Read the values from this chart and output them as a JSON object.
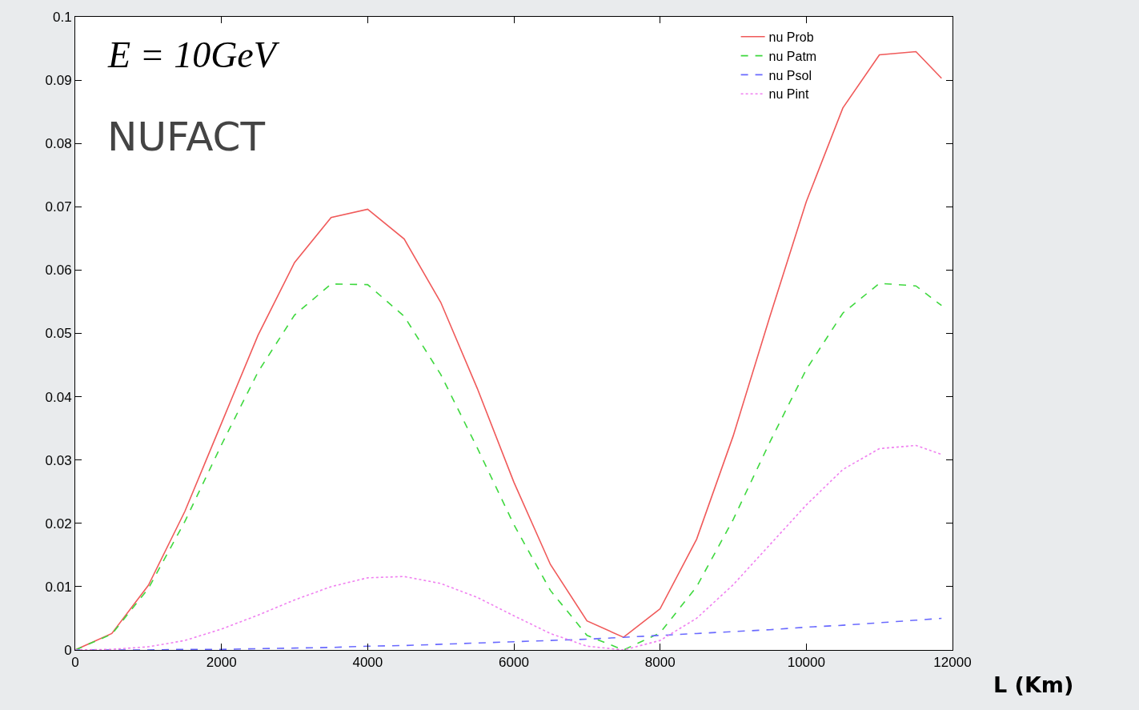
{
  "chart_data": {
    "type": "line",
    "xlabel": "L (Km)",
    "x": [
      0,
      500,
      1000,
      1500,
      2000,
      2500,
      3000,
      3500,
      4000,
      4500,
      5000,
      5500,
      6000,
      6500,
      7000,
      7500,
      8000,
      8500,
      9000,
      9500,
      10000,
      10500,
      11000,
      11500,
      11850
    ],
    "series": [
      {
        "name": "nu Prob",
        "color": "#f05a5a",
        "line_style": "solid",
        "values": [
          0,
          0.0026,
          0.0102,
          0.0219,
          0.0358,
          0.0497,
          0.0612,
          0.0683,
          0.0696,
          0.0649,
          0.0549,
          0.0413,
          0.0265,
          0.0135,
          0.0046,
          0.002,
          0.0065,
          0.0175,
          0.0338,
          0.0526,
          0.0708,
          0.0856,
          0.094,
          0.0945,
          0.0903
        ]
      },
      {
        "name": "nu Patm",
        "color": "#3ed83e",
        "line_style": "dashed",
        "values": [
          0,
          0.0025,
          0.0097,
          0.0203,
          0.0324,
          0.0439,
          0.0529,
          0.0578,
          0.0577,
          0.0527,
          0.0435,
          0.0319,
          0.0198,
          0.0094,
          0.0023,
          0.0,
          0.0027,
          0.01,
          0.0206,
          0.0328,
          0.0443,
          0.0532,
          0.0579,
          0.0575,
          0.0544
        ]
      },
      {
        "name": "nu Psol",
        "color": "#6a6aff",
        "line_style": "dashed",
        "values": [
          0,
          0.0,
          0.0,
          0.0001,
          0.0001,
          0.0002,
          0.0003,
          0.0004,
          0.0006,
          0.0007,
          0.0009,
          0.0011,
          0.0013,
          0.0015,
          0.0017,
          0.002,
          0.0023,
          0.0026,
          0.0029,
          0.0032,
          0.0036,
          0.0039,
          0.0043,
          0.0047,
          0.005
        ]
      },
      {
        "name": "nu Pint",
        "color": "#f080f0",
        "line_style": "dotted",
        "values": [
          0,
          0.0001,
          0.0005,
          0.0015,
          0.0033,
          0.0055,
          0.0079,
          0.01,
          0.0114,
          0.0116,
          0.0105,
          0.0083,
          0.0054,
          0.0026,
          0.0006,
          0.0,
          0.0015,
          0.005,
          0.0103,
          0.0166,
          0.0229,
          0.0285,
          0.0318,
          0.0323,
          0.0309
        ]
      }
    ],
    "xlim": [
      0,
      12000
    ],
    "xticks": [
      0,
      2000,
      4000,
      6000,
      8000,
      10000,
      12000
    ],
    "ylim": [
      0,
      0.1
    ],
    "yticks": [
      0,
      0.01,
      0.02,
      0.03,
      0.04,
      0.05,
      0.06,
      0.07,
      0.08,
      0.09,
      0.1
    ],
    "annotations": [
      "E = 10GeV",
      "NUFACT"
    ],
    "legend": "top right",
    "marker": "none"
  }
}
